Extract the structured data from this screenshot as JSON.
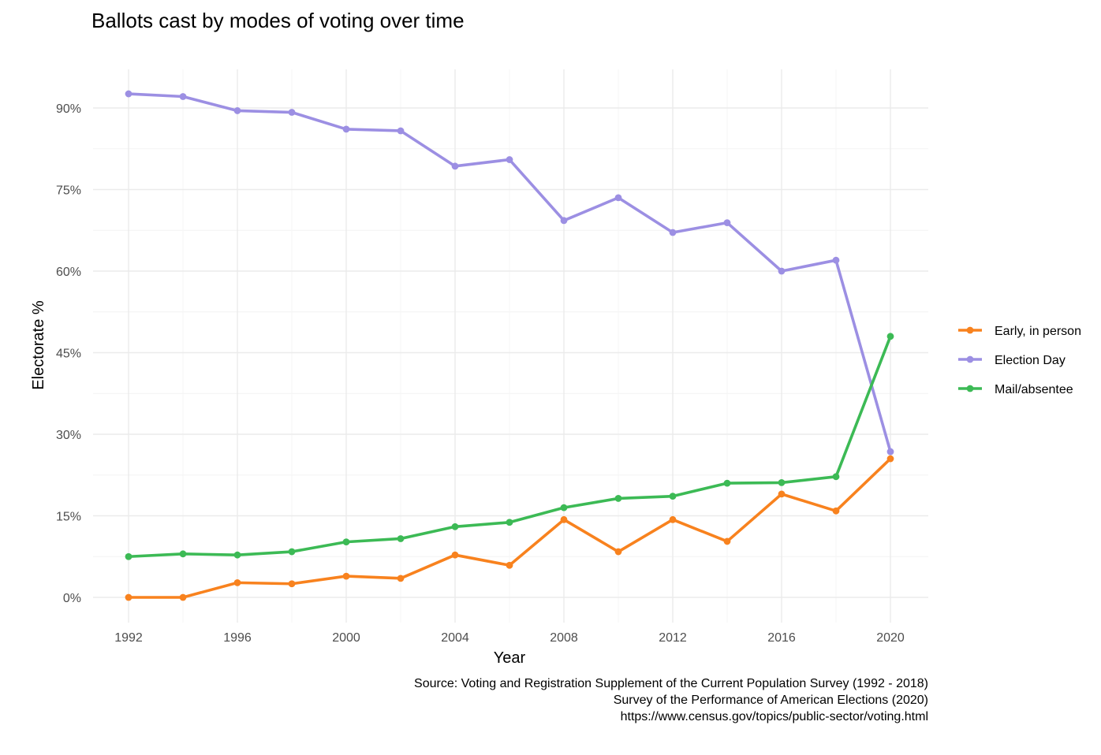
{
  "chart_data": {
    "type": "line",
    "title": "Ballots cast by modes of voting over time",
    "xlabel": "Year",
    "ylabel": "Electorate %",
    "x": [
      1992,
      1994,
      1996,
      1998,
      2000,
      2002,
      2004,
      2006,
      2008,
      2010,
      2012,
      2014,
      2016,
      2018,
      2020
    ],
    "xlim": [
      1992,
      2020
    ],
    "ylim": [
      0,
      0.925
    ],
    "x_ticks": [
      "1992",
      "1996",
      "2000",
      "2004",
      "2008",
      "2012",
      "2016",
      "2020"
    ],
    "y_ticks": [
      "0%",
      "15%",
      "30%",
      "45%",
      "60%",
      "75%",
      "90%"
    ],
    "grid": true,
    "legend_position": "right",
    "series": [
      {
        "name": "Early, in person",
        "color": "#F8821E",
        "values": [
          0.0,
          0.0,
          0.027,
          0.025,
          0.039,
          0.035,
          0.078,
          0.059,
          0.143,
          0.084,
          0.143,
          0.103,
          0.19,
          0.159,
          0.255
        ]
      },
      {
        "name": "Election Day",
        "color": "#9C8FE3",
        "values": [
          0.926,
          0.921,
          0.895,
          0.892,
          0.861,
          0.858,
          0.793,
          0.805,
          0.693,
          0.735,
          0.671,
          0.689,
          0.6,
          0.62,
          0.268
        ]
      },
      {
        "name": "Mail/absentee",
        "color": "#3CBA55",
        "values": [
          0.075,
          0.08,
          0.078,
          0.084,
          0.102,
          0.108,
          0.13,
          0.138,
          0.165,
          0.182,
          0.186,
          0.21,
          0.211,
          0.222,
          0.48
        ]
      }
    ],
    "caption": [
      "Source: Voting and Registration Supplement of the Current Population Survey (1992 - 2018)",
      "Survey of the Performance of American Elections (2020)",
      "https://www.census.gov/topics/public-sector/voting.html"
    ]
  }
}
